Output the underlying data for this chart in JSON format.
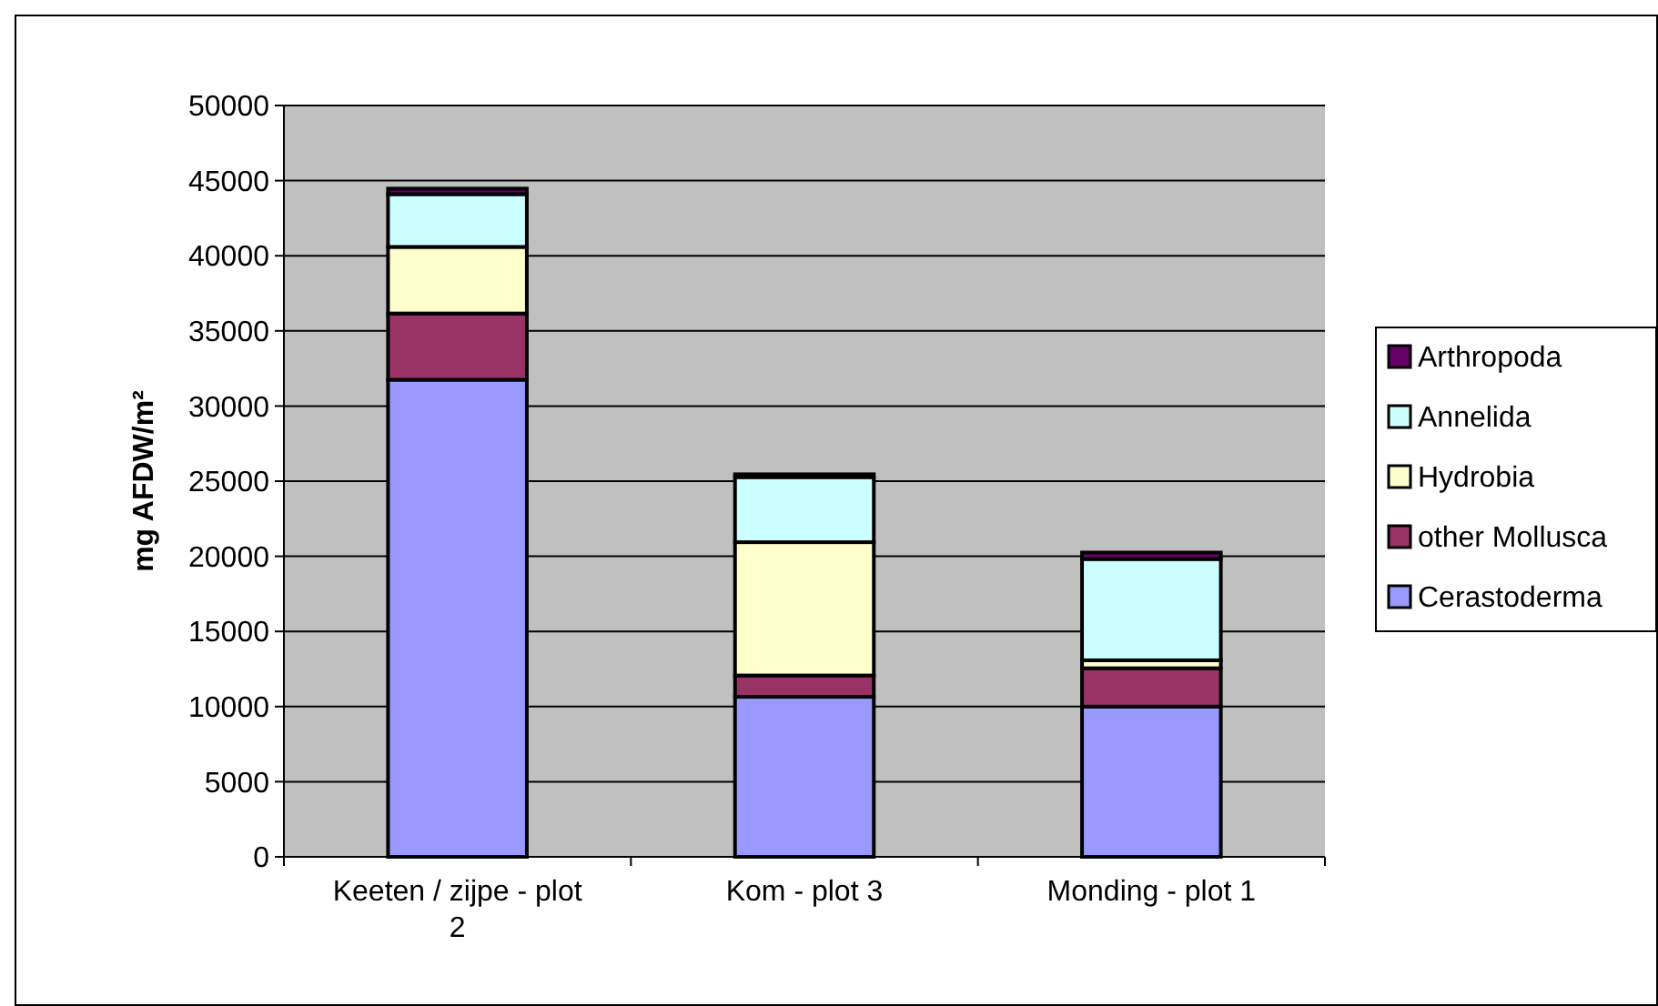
{
  "chart_data": {
    "type": "bar",
    "stacked": true,
    "ylabel": "mg AFDW/m²",
    "categories": [
      "Keeten / zijpe - plot 2",
      "Kom - plot 3",
      "Monding - plot 1"
    ],
    "series": [
      {
        "name": "Cerastoderma",
        "color": "#9999ff",
        "values": [
          31750,
          10650,
          10000
        ]
      },
      {
        "name": "other Mollusca",
        "color": "#993366",
        "values": [
          4410,
          1420,
          2550
        ]
      },
      {
        "name": "Hydrobia",
        "color": "#ffffcc",
        "values": [
          4430,
          8870,
          530
        ]
      },
      {
        "name": "Annelida",
        "color": "#ccffff",
        "values": [
          3510,
          4330,
          6740
        ]
      },
      {
        "name": "Arthropoda",
        "color": "#660066",
        "values": [
          370,
          190,
          430
        ]
      }
    ],
    "ylim": [
      0,
      50000
    ],
    "yticks": [
      0,
      5000,
      10000,
      15000,
      20000,
      25000,
      30000,
      35000,
      40000,
      45000,
      50000
    ],
    "grid": "y",
    "legend": "right"
  }
}
